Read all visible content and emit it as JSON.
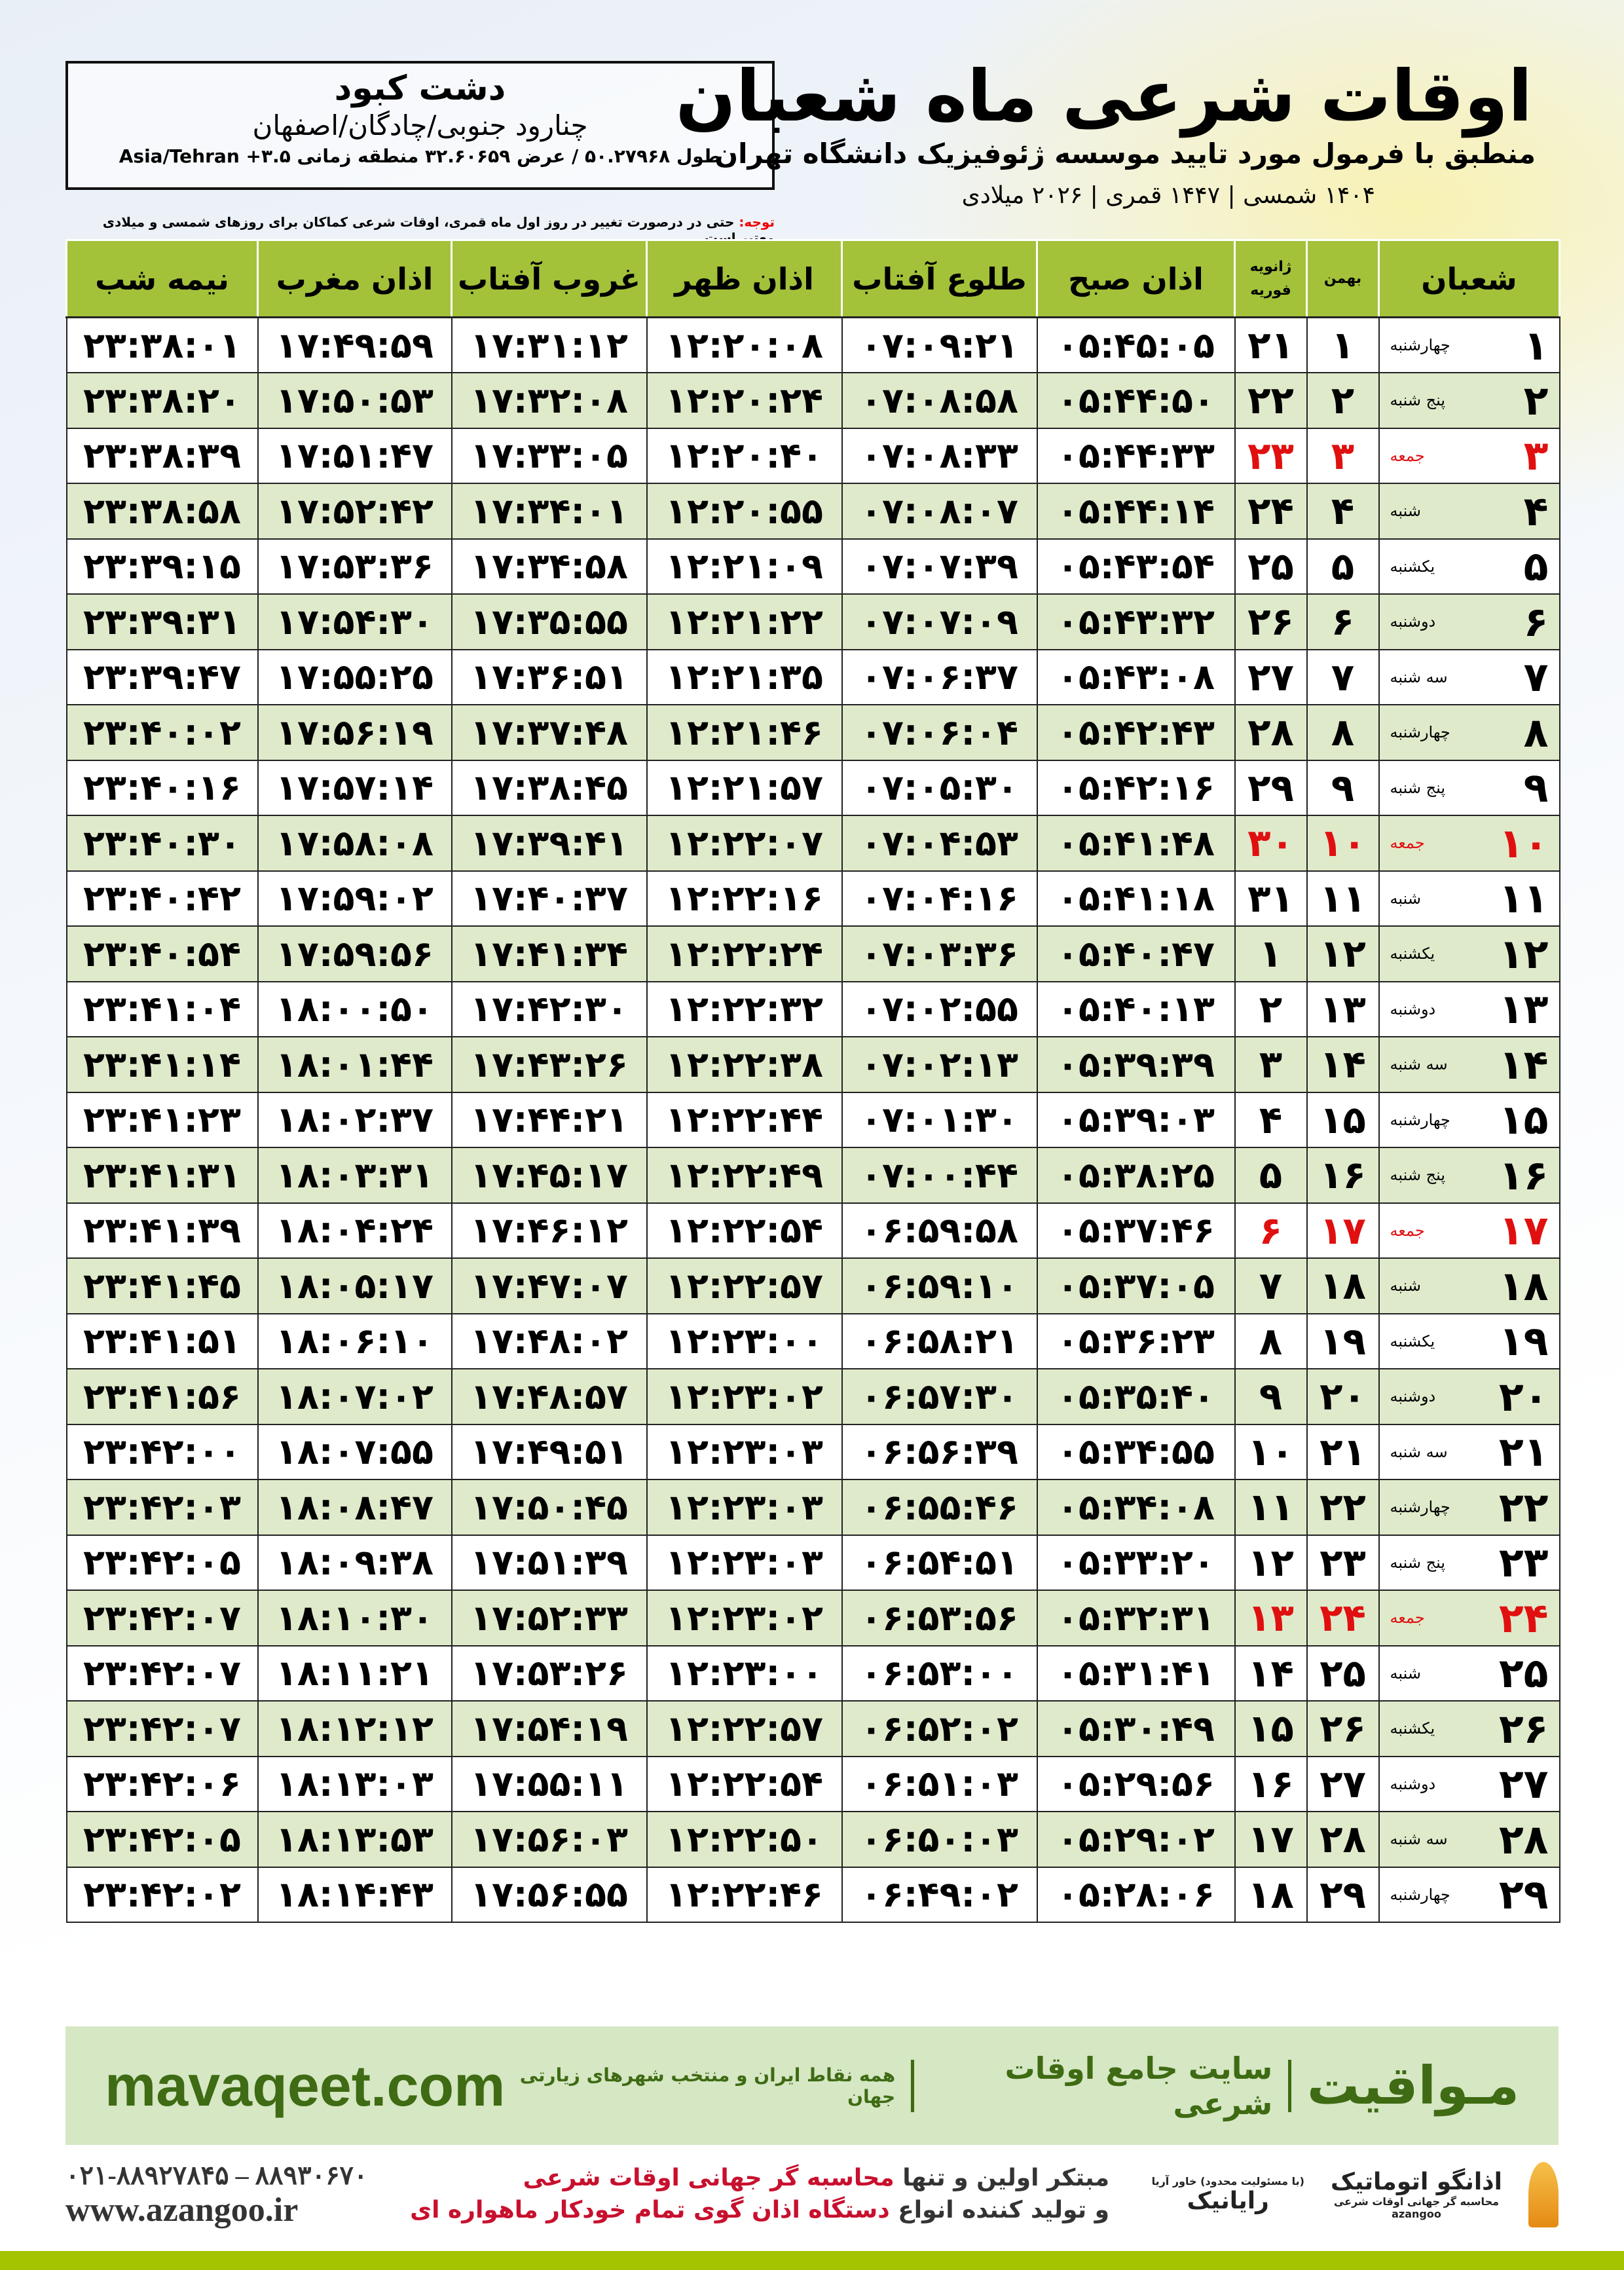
{
  "header": {
    "title": "اوقات شرعی ماه شعبان",
    "subtitle": "منطبق با فرمول مورد تایید موسسه ژئوفیزیک دانشگاه تهران",
    "years": "۱۴۰۴ شمسی | ۱۴۴۷ قمری | ۲۰۲۶ میلادی"
  },
  "location": {
    "city": "دشت کبود",
    "region": "چنارود جنوبی/چادگان/اصفهان",
    "coords": "طول ۵۰.۲۷۹۶۸ / عرض ۳۲.۶۰۶۵۹ منطقه زمانی ۳.۵+ Asia/Tehran"
  },
  "note": {
    "label": "توجه:",
    "text": " حتی در درصورت تغییر در روز اول ماه قمری، اوقات شرعی کماکان برای روزهای شمسی و میلادی معتبر است."
  },
  "colors": {
    "header_green": "#a3c23a",
    "row_alt": "#dfeacb",
    "holiday_red": "#e01010",
    "brand_green": "#3e6b13"
  },
  "table": {
    "headers": [
      "شعبان",
      "بهمن",
      "ژانویه فوریه",
      "اذان صبح",
      "طلوع آفتاب",
      "اذان ظهر",
      "غروب آفتاب",
      "اذان مغرب",
      "نیمه شب"
    ],
    "rows": [
      [
        "۱",
        "چهارشنبه",
        "۱",
        "۲۱",
        "۰۵:۴۵:۰۵",
        "۰۷:۰۹:۲۱",
        "۱۲:۲۰:۰۸",
        "۱۷:۳۱:۱۲",
        "۱۷:۴۹:۵۹",
        "۲۳:۳۸:۰۱",
        false
      ],
      [
        "۲",
        "پنج شنبه",
        "۲",
        "۲۲",
        "۰۵:۴۴:۵۰",
        "۰۷:۰۸:۵۸",
        "۱۲:۲۰:۲۴",
        "۱۷:۳۲:۰۸",
        "۱۷:۵۰:۵۳",
        "۲۳:۳۸:۲۰",
        false
      ],
      [
        "۳",
        "جمعه",
        "۳",
        "۲۳",
        "۰۵:۴۴:۳۳",
        "۰۷:۰۸:۳۳",
        "۱۲:۲۰:۴۰",
        "۱۷:۳۳:۰۵",
        "۱۷:۵۱:۴۷",
        "۲۳:۳۸:۳۹",
        true
      ],
      [
        "۴",
        "شنبه",
        "۴",
        "۲۴",
        "۰۵:۴۴:۱۴",
        "۰۷:۰۸:۰۷",
        "۱۲:۲۰:۵۵",
        "۱۷:۳۴:۰۱",
        "۱۷:۵۲:۴۲",
        "۲۳:۳۸:۵۸",
        false
      ],
      [
        "۵",
        "یکشنبه",
        "۵",
        "۲۵",
        "۰۵:۴۳:۵۴",
        "۰۷:۰۷:۳۹",
        "۱۲:۲۱:۰۹",
        "۱۷:۳۴:۵۸",
        "۱۷:۵۳:۳۶",
        "۲۳:۳۹:۱۵",
        false
      ],
      [
        "۶",
        "دوشنبه",
        "۶",
        "۲۶",
        "۰۵:۴۳:۳۲",
        "۰۷:۰۷:۰۹",
        "۱۲:۲۱:۲۲",
        "۱۷:۳۵:۵۵",
        "۱۷:۵۴:۳۰",
        "۲۳:۳۹:۳۱",
        false
      ],
      [
        "۷",
        "سه شنبه",
        "۷",
        "۲۷",
        "۰۵:۴۳:۰۸",
        "۰۷:۰۶:۳۷",
        "۱۲:۲۱:۳۵",
        "۱۷:۳۶:۵۱",
        "۱۷:۵۵:۲۵",
        "۲۳:۳۹:۴۷",
        false
      ],
      [
        "۸",
        "چهارشنبه",
        "۸",
        "۲۸",
        "۰۵:۴۲:۴۳",
        "۰۷:۰۶:۰۴",
        "۱۲:۲۱:۴۶",
        "۱۷:۳۷:۴۸",
        "۱۷:۵۶:۱۹",
        "۲۳:۴۰:۰۲",
        false
      ],
      [
        "۹",
        "پنج شنبه",
        "۹",
        "۲۹",
        "۰۵:۴۲:۱۶",
        "۰۷:۰۵:۳۰",
        "۱۲:۲۱:۵۷",
        "۱۷:۳۸:۴۵",
        "۱۷:۵۷:۱۴",
        "۲۳:۴۰:۱۶",
        false
      ],
      [
        "۱۰",
        "جمعه",
        "۱۰",
        "۳۰",
        "۰۵:۴۱:۴۸",
        "۰۷:۰۴:۵۳",
        "۱۲:۲۲:۰۷",
        "۱۷:۳۹:۴۱",
        "۱۷:۵۸:۰۸",
        "۲۳:۴۰:۳۰",
        true
      ],
      [
        "۱۱",
        "شنبه",
        "۱۱",
        "۳۱",
        "۰۵:۴۱:۱۸",
        "۰۷:۰۴:۱۶",
        "۱۲:۲۲:۱۶",
        "۱۷:۴۰:۳۷",
        "۱۷:۵۹:۰۲",
        "۲۳:۴۰:۴۲",
        false
      ],
      [
        "۱۲",
        "یکشنبه",
        "۱۲",
        "۱",
        "۰۵:۴۰:۴۷",
        "۰۷:۰۳:۳۶",
        "۱۲:۲۲:۲۴",
        "۱۷:۴۱:۳۴",
        "۱۷:۵۹:۵۶",
        "۲۳:۴۰:۵۴",
        false
      ],
      [
        "۱۳",
        "دوشنبه",
        "۱۳",
        "۲",
        "۰۵:۴۰:۱۳",
        "۰۷:۰۲:۵۵",
        "۱۲:۲۲:۳۲",
        "۱۷:۴۲:۳۰",
        "۱۸:۰۰:۵۰",
        "۲۳:۴۱:۰۴",
        false
      ],
      [
        "۱۴",
        "سه شنبه",
        "۱۴",
        "۳",
        "۰۵:۳۹:۳۹",
        "۰۷:۰۲:۱۳",
        "۱۲:۲۲:۳۸",
        "۱۷:۴۳:۲۶",
        "۱۸:۰۱:۴۴",
        "۲۳:۴۱:۱۴",
        false
      ],
      [
        "۱۵",
        "چهارشنبه",
        "۱۵",
        "۴",
        "۰۵:۳۹:۰۳",
        "۰۷:۰۱:۳۰",
        "۱۲:۲۲:۴۴",
        "۱۷:۴۴:۲۱",
        "۱۸:۰۲:۳۷",
        "۲۳:۴۱:۲۳",
        false
      ],
      [
        "۱۶",
        "پنج شنبه",
        "۱۶",
        "۵",
        "۰۵:۳۸:۲۵",
        "۰۷:۰۰:۴۴",
        "۱۲:۲۲:۴۹",
        "۱۷:۴۵:۱۷",
        "۱۸:۰۳:۳۱",
        "۲۳:۴۱:۳۱",
        false
      ],
      [
        "۱۷",
        "جمعه",
        "۱۷",
        "۶",
        "۰۵:۳۷:۴۶",
        "۰۶:۵۹:۵۸",
        "۱۲:۲۲:۵۴",
        "۱۷:۴۶:۱۲",
        "۱۸:۰۴:۲۴",
        "۲۳:۴۱:۳۹",
        true
      ],
      [
        "۱۸",
        "شنبه",
        "۱۸",
        "۷",
        "۰۵:۳۷:۰۵",
        "۰۶:۵۹:۱۰",
        "۱۲:۲۲:۵۷",
        "۱۷:۴۷:۰۷",
        "۱۸:۰۵:۱۷",
        "۲۳:۴۱:۴۵",
        false
      ],
      [
        "۱۹",
        "یکشنبه",
        "۱۹",
        "۸",
        "۰۵:۳۶:۲۳",
        "۰۶:۵۸:۲۱",
        "۱۲:۲۳:۰۰",
        "۱۷:۴۸:۰۲",
        "۱۸:۰۶:۱۰",
        "۲۳:۴۱:۵۱",
        false
      ],
      [
        "۲۰",
        "دوشنبه",
        "۲۰",
        "۹",
        "۰۵:۳۵:۴۰",
        "۰۶:۵۷:۳۰",
        "۱۲:۲۳:۰۲",
        "۱۷:۴۸:۵۷",
        "۱۸:۰۷:۰۲",
        "۲۳:۴۱:۵۶",
        false
      ],
      [
        "۲۱",
        "سه شنبه",
        "۲۱",
        "۱۰",
        "۰۵:۳۴:۵۵",
        "۰۶:۵۶:۳۹",
        "۱۲:۲۳:۰۳",
        "۱۷:۴۹:۵۱",
        "۱۸:۰۷:۵۵",
        "۲۳:۴۲:۰۰",
        false
      ],
      [
        "۲۲",
        "چهارشنبه",
        "۲۲",
        "۱۱",
        "۰۵:۳۴:۰۸",
        "۰۶:۵۵:۴۶",
        "۱۲:۲۳:۰۳",
        "۱۷:۵۰:۴۵",
        "۱۸:۰۸:۴۷",
        "۲۳:۴۲:۰۳",
        false
      ],
      [
        "۲۳",
        "پنج شنبه",
        "۲۳",
        "۱۲",
        "۰۵:۳۳:۲۰",
        "۰۶:۵۴:۵۱",
        "۱۲:۲۳:۰۳",
        "۱۷:۵۱:۳۹",
        "۱۸:۰۹:۳۸",
        "۲۳:۴۲:۰۵",
        false
      ],
      [
        "۲۴",
        "جمعه",
        "۲۴",
        "۱۳",
        "۰۵:۳۲:۳۱",
        "۰۶:۵۳:۵۶",
        "۱۲:۲۳:۰۲",
        "۱۷:۵۲:۳۳",
        "۱۸:۱۰:۳۰",
        "۲۳:۴۲:۰۷",
        true
      ],
      [
        "۲۵",
        "شنبه",
        "۲۵",
        "۱۴",
        "۰۵:۳۱:۴۱",
        "۰۶:۵۳:۰۰",
        "۱۲:۲۳:۰۰",
        "۱۷:۵۳:۲۶",
        "۱۸:۱۱:۲۱",
        "۲۳:۴۲:۰۷",
        false
      ],
      [
        "۲۶",
        "یکشنبه",
        "۲۶",
        "۱۵",
        "۰۵:۳۰:۴۹",
        "۰۶:۵۲:۰۲",
        "۱۲:۲۲:۵۷",
        "۱۷:۵۴:۱۹",
        "۱۸:۱۲:۱۲",
        "۲۳:۴۲:۰۷",
        false
      ],
      [
        "۲۷",
        "دوشنبه",
        "۲۷",
        "۱۶",
        "۰۵:۲۹:۵۶",
        "۰۶:۵۱:۰۳",
        "۱۲:۲۲:۵۴",
        "۱۷:۵۵:۱۱",
        "۱۸:۱۳:۰۳",
        "۲۳:۴۲:۰۶",
        false
      ],
      [
        "۲۸",
        "سه شنبه",
        "۲۸",
        "۱۷",
        "۰۵:۲۹:۰۲",
        "۰۶:۵۰:۰۳",
        "۱۲:۲۲:۵۰",
        "۱۷:۵۶:۰۳",
        "۱۸:۱۳:۵۳",
        "۲۳:۴۲:۰۵",
        false
      ],
      [
        "۲۹",
        "چهارشنبه",
        "۲۹",
        "۱۸",
        "۰۵:۲۸:۰۶",
        "۰۶:۴۹:۰۲",
        "۱۲:۲۲:۴۶",
        "۱۷:۵۶:۵۵",
        "۱۸:۱۴:۴۳",
        "۲۳:۴۲:۰۲",
        false
      ]
    ]
  },
  "banner": {
    "brand": "مـواقیت",
    "tagline": "سایت جامع اوقات شرعی",
    "description": "همه نقاط ایران و منتخب شهرهای زیارتی جهان",
    "site": "mavaqeet.com"
  },
  "footer": {
    "phone": "۰۲۱-۸۸۹۲۷۸۴۵ – ۸۸۹۳۰۶۷۰",
    "website": "www.azangoo.ir",
    "line1_a": "مبتکر اولین و تنها ",
    "line1_b": "محاسبه گر جهانی اوقات شرعی",
    "line2_a": "و تولید کننده انواع ",
    "line2_b": "دستگاه اذان گوی تمام خودکار ماهواره ای",
    "logo1": "رایانیک",
    "logo1_small": "(با مسئولیت محدود) خاور آریا",
    "logo2": "اذانگو اتوماتیک",
    "logo2_small": "محاسبه گر جهانی اوقات شرعی",
    "logo2_latin": "azangoo"
  }
}
